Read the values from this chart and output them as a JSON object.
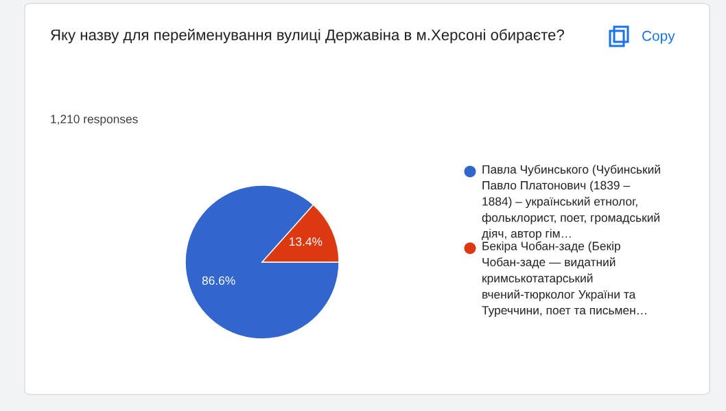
{
  "chart_data": {
    "type": "pie",
    "title": "Яку назву для перейменування вулиці Державіна в м.Херсоні обираєте?",
    "annotations": [
      "1,210 responses",
      "Copy"
    ],
    "categories": [
      "Павла Чубинського (Чубинський Павло Платонович (1839 – 1884) – український етнолог, фольклорист, поет, громадський діяч, автор гім…",
      "Бекіра Чобан-заде (Бекір Чобан-заде — видатний кримськотатарський вчений-тюрколог України та Туреччини, поет та письмен…"
    ],
    "values": [
      86.6,
      13.4
    ],
    "value_labels": [
      "86.6%",
      "13.4%"
    ],
    "colors": [
      "#3366cc",
      "#dc3912"
    ],
    "legend": "right"
  }
}
